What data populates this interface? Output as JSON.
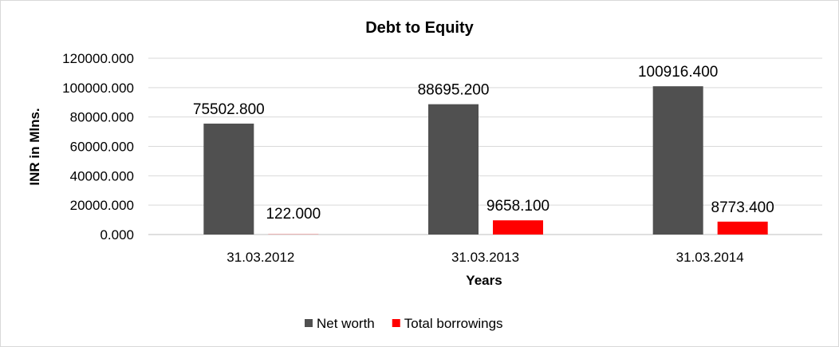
{
  "chart_data": {
    "type": "bar",
    "title": "Debt to Equity",
    "xlabel": "Years",
    "ylabel": "INR in Mlns.",
    "categories": [
      "31.03.2012",
      "31.03.2013",
      "31.03.2014"
    ],
    "series": [
      {
        "name": "Net worth",
        "color": "#505050",
        "values": [
          75502.8,
          88695.2,
          100916.4
        ],
        "labels": [
          "75502.800",
          "88695.200",
          "100916.400"
        ]
      },
      {
        "name": "Total borrowings",
        "color": "#ff0000",
        "values": [
          122.0,
          9658.1,
          8773.4
        ],
        "labels": [
          "122.000",
          "9658.100",
          "8773.400"
        ]
      }
    ],
    "ylim": [
      0,
      120000
    ],
    "yticks": [
      "0.000",
      "20000.000",
      "40000.000",
      "60000.000",
      "80000.000",
      "100000.000",
      "120000.000"
    ],
    "grid": true,
    "legend": "bottom"
  }
}
